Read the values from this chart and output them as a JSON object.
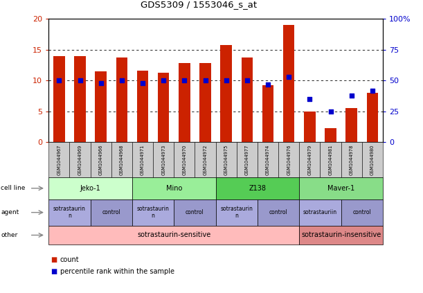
{
  "title": "GDS5309 / 1553046_s_at",
  "samples": [
    "GSM1044967",
    "GSM1044969",
    "GSM1044966",
    "GSM1044968",
    "GSM1044971",
    "GSM1044973",
    "GSM1044970",
    "GSM1044972",
    "GSM1044975",
    "GSM1044977",
    "GSM1044974",
    "GSM1044976",
    "GSM1044979",
    "GSM1044981",
    "GSM1044978",
    "GSM1044980"
  ],
  "counts": [
    14.0,
    14.0,
    11.5,
    13.7,
    11.6,
    11.3,
    12.8,
    12.8,
    15.8,
    13.7,
    9.3,
    19.0,
    5.0,
    2.3,
    5.5,
    8.0
  ],
  "percentiles": [
    50,
    50,
    48,
    50,
    48,
    50,
    50,
    50,
    50,
    50,
    47,
    53,
    35,
    25,
    38,
    42
  ],
  "ylim_left": [
    0,
    20
  ],
  "ylim_right": [
    0,
    100
  ],
  "yticks_left": [
    0,
    5,
    10,
    15,
    20
  ],
  "yticks_right": [
    0,
    25,
    50,
    75,
    100
  ],
  "ytick_labels_left": [
    "0",
    "5",
    "10",
    "15",
    "20"
  ],
  "ytick_labels_right": [
    "0",
    "25",
    "50",
    "75",
    "100%"
  ],
  "bar_color": "#cc2200",
  "dot_color": "#0000cc",
  "cell_line_row": {
    "label": "cell line",
    "groups": [
      {
        "text": "Jeko-1",
        "start": 0,
        "end": 3,
        "color": "#ccffcc"
      },
      {
        "text": "Mino",
        "start": 4,
        "end": 7,
        "color": "#99ee99"
      },
      {
        "text": "Z138",
        "start": 8,
        "end": 11,
        "color": "#55cc55"
      },
      {
        "text": "Maver-1",
        "start": 12,
        "end": 15,
        "color": "#88dd88"
      }
    ]
  },
  "agent_row": {
    "label": "agent",
    "groups": [
      {
        "text": "sotrastaurin\nn",
        "start": 0,
        "end": 1,
        "color": "#aaaadd"
      },
      {
        "text": "control",
        "start": 2,
        "end": 3,
        "color": "#9999cc"
      },
      {
        "text": "sotrastaurin\nn",
        "start": 4,
        "end": 5,
        "color": "#aaaadd"
      },
      {
        "text": "control",
        "start": 6,
        "end": 7,
        "color": "#9999cc"
      },
      {
        "text": "sotrastaurin\nn",
        "start": 8,
        "end": 9,
        "color": "#aaaadd"
      },
      {
        "text": "control",
        "start": 10,
        "end": 11,
        "color": "#9999cc"
      },
      {
        "text": "sotrastauriin",
        "start": 12,
        "end": 13,
        "color": "#aaaadd"
      },
      {
        "text": "control",
        "start": 14,
        "end": 15,
        "color": "#9999cc"
      }
    ]
  },
  "other_row": {
    "label": "other",
    "groups": [
      {
        "text": "sotrastaurin-sensitive",
        "start": 0,
        "end": 11,
        "color": "#ffbbbb"
      },
      {
        "text": "sotrastaurin-insensitive",
        "start": 12,
        "end": 15,
        "color": "#dd8888"
      }
    ]
  },
  "legend_count_color": "#cc2200",
  "legend_dot_color": "#0000cc",
  "legend_count_label": "count",
  "legend_dot_label": "percentile rank within the sample",
  "bg_color": "#ffffff",
  "axis_color_left": "#cc2200",
  "axis_color_right": "#0000cc",
  "sample_box_color": "#cccccc"
}
